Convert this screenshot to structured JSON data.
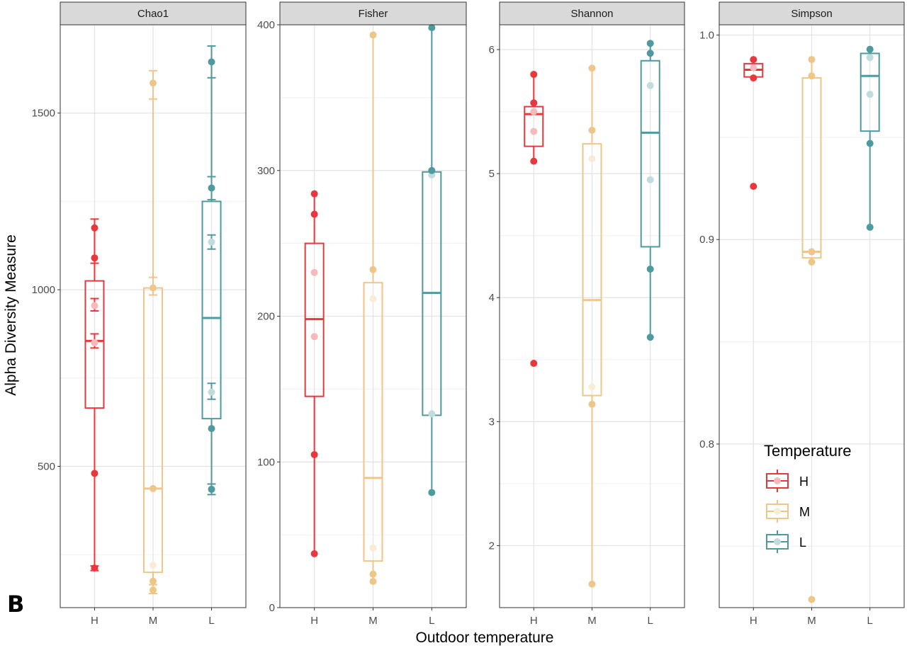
{
  "figure_tag": "B",
  "colors": {
    "H": "#e8383d",
    "M": "#efc68a",
    "L": "#4e9a9e"
  },
  "chart_data": {
    "type": "box",
    "categories": [
      "H",
      "M",
      "L"
    ],
    "xlabel": "Outdoor temperature",
    "ylabel": "Alpha Diversity Measure",
    "grid": true,
    "legend": {
      "title": "Temperature",
      "entries": [
        "H",
        "M",
        "L"
      ],
      "placement": "inside bottom-right (Simpson panel)"
    },
    "facets": [
      {
        "name": "Chao1",
        "ylim": [
          100,
          1750
        ],
        "yticks": [
          500,
          1000,
          1500
        ],
        "groups": [
          {
            "category": "H",
            "box": {
              "lower": 665,
              "median": 855,
              "upper": 1025
            },
            "whisker": [
              212,
              1175
            ],
            "points": [
              212,
              480,
              850,
              955,
              1090,
              1175
            ],
            "error_bars": [
              [
                205,
                218
              ],
              [
                1075,
                1200
              ],
              [
                835,
                875
              ],
              [
                940,
                975
              ]
            ]
          },
          {
            "category": "M",
            "box": {
              "lower": 200,
              "median": 437,
              "upper": 1005
            },
            "whisker": [
              150,
              1585
            ],
            "points": [
              150,
              175,
              220,
              437,
              1005,
              1585
            ],
            "error_bars": [
              [
                140,
                165
              ],
              [
                1540,
                1620
              ],
              [
                985,
                1035
              ]
            ]
          },
          {
            "category": "L",
            "box": {
              "lower": 635,
              "median": 920,
              "upper": 1250
            },
            "whisker": [
              435,
              1645
            ],
            "points": [
              435,
              607,
              710,
              1135,
              1288,
              1645
            ],
            "error_bars": [
              [
                420,
                450
              ],
              [
                1600,
                1690
              ],
              [
                1255,
                1320
              ],
              [
                1115,
                1155
              ],
              [
                690,
                735
              ]
            ]
          }
        ]
      },
      {
        "name": "Fisher",
        "ylim": [
          0,
          400
        ],
        "yticks": [
          0,
          100,
          200,
          300,
          400
        ],
        "groups": [
          {
            "category": "H",
            "box": {
              "lower": 145,
              "median": 198,
              "upper": 250
            },
            "whisker": [
              37,
              284
            ],
            "points": [
              37,
              105,
              186,
              230,
              270,
              284
            ]
          },
          {
            "category": "M",
            "box": {
              "lower": 32,
              "median": 89,
              "upper": 223
            },
            "whisker": [
              18,
              393
            ],
            "points": [
              18,
              23,
              41,
              212,
              232,
              393
            ]
          },
          {
            "category": "L",
            "box": {
              "lower": 132,
              "median": 216,
              "upper": 299
            },
            "whisker": [
              79,
              398
            ],
            "points": [
              79,
              133,
              297,
              300,
              398
            ]
          }
        ]
      },
      {
        "name": "Shannon",
        "ylim": [
          1.5,
          6.2
        ],
        "yticks": [
          2,
          3,
          4,
          5,
          6
        ],
        "groups": [
          {
            "category": "H",
            "box": {
              "lower": 5.22,
              "median": 5.48,
              "upper": 5.54
            },
            "whisker": [
              5.1,
              5.8
            ],
            "points": [
              3.47,
              5.1,
              5.34,
              5.5,
              5.57,
              5.8
            ]
          },
          {
            "category": "M",
            "box": {
              "lower": 3.21,
              "median": 3.98,
              "upper": 5.24
            },
            "whisker": [
              1.69,
              5.85
            ],
            "points": [
              1.69,
              3.14,
              3.28,
              5.12,
              5.35,
              5.85
            ]
          },
          {
            "category": "L",
            "box": {
              "lower": 4.41,
              "median": 5.33,
              "upper": 5.91
            },
            "whisker": [
              3.68,
              6.05
            ],
            "points": [
              3.68,
              4.23,
              4.95,
              5.71,
              5.97,
              6.05
            ]
          }
        ]
      },
      {
        "name": "Simpson",
        "ylim": [
          0.72,
          1.005
        ],
        "yticks": [
          0.8,
          0.9,
          1.0
        ],
        "ytick_labels": [
          "0.8",
          "0.9",
          "1.0"
        ],
        "groups": [
          {
            "category": "H",
            "box": {
              "lower": 0.9795,
              "median": 0.983,
              "upper": 0.986
            },
            "whisker": [
              0.979,
              0.988
            ],
            "points": [
              0.926,
              0.979,
              0.984,
              0.988
            ]
          },
          {
            "category": "M",
            "box": {
              "lower": 0.891,
              "median": 0.894,
              "upper": 0.979
            },
            "whisker": [
              0.889,
              0.988
            ],
            "points": [
              0.724,
              0.889,
              0.894,
              0.98,
              0.988
            ]
          },
          {
            "category": "L",
            "box": {
              "lower": 0.953,
              "median": 0.98,
              "upper": 0.991
            },
            "whisker": [
              0.906,
              0.993
            ],
            "points": [
              0.906,
              0.947,
              0.971,
              0.989,
              0.993
            ]
          }
        ]
      }
    ]
  }
}
